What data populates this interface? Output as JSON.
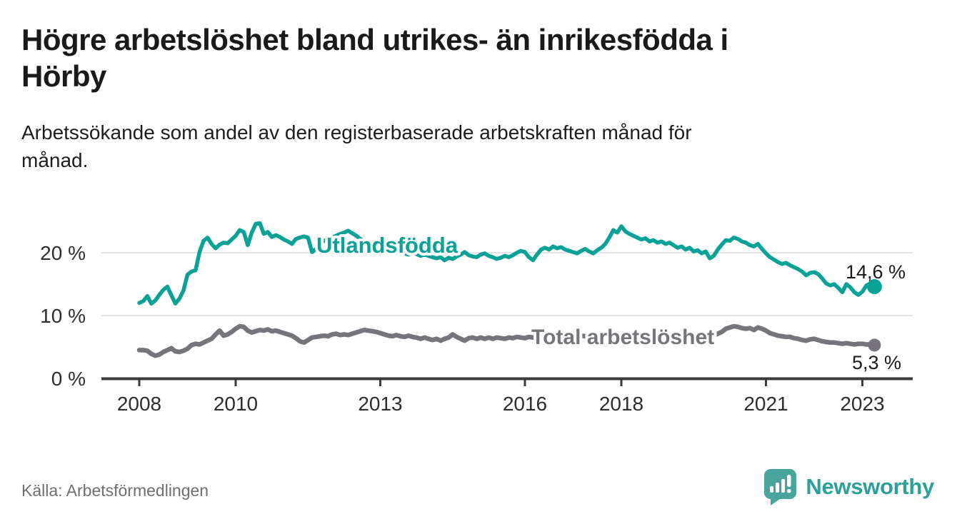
{
  "header": {
    "title_lines": [
      "Högre arbetslöshet bland utrikes- än inrikesfödda i",
      "Hörby"
    ],
    "subtitle_lines": [
      "Arbetssökande som andel av den registerbaserade arbetskraften månad för",
      "månad."
    ]
  },
  "footer": {
    "source": "Källa: Arbetsförmedlingen",
    "brand": "Newsworthy",
    "brand_icon": "newsworthy-speech-bubble-bar-chart-icon",
    "brand_color": "#2ba19a"
  },
  "chart_data": {
    "type": "line",
    "title": "Högre arbetslöshet bland utrikes- än inrikesfödda i Hörby",
    "subtitle": "Arbetssökande som andel av den registerbaserade arbetskraften månad för månad.",
    "source": "Källa: Arbetsförmedlingen",
    "period": {
      "start": "2008-01",
      "end": "2023-04",
      "frequency": "monthly"
    },
    "x_start": 2008,
    "x_ticks": [
      2008,
      2010,
      2013,
      2016,
      2018,
      2021,
      2023
    ],
    "y_ticks": [
      {
        "value": 0,
        "label": "0 %"
      },
      {
        "value": 10,
        "label": "10 %"
      },
      {
        "value": 20,
        "label": "20 %"
      }
    ],
    "ylim": [
      0,
      26
    ],
    "grid": "horizontal",
    "legend": "inline-labels",
    "colors": {
      "accent_teal": "#0aa296",
      "neutral_gray": "#77757b",
      "annotation": "#1a1a1a"
    },
    "series": [
      {
        "name": "Utlandsfödda",
        "color": "#0aa296",
        "end_label": "14,6 %",
        "end_value": 14.6,
        "values": [
          12.0,
          12.3,
          13.1,
          11.9,
          12.4,
          13.3,
          14.1,
          14.6,
          13.2,
          11.9,
          12.7,
          14.0,
          16.5,
          17.0,
          17.2,
          20.1,
          21.9,
          22.4,
          21.4,
          20.7,
          21.3,
          21.6,
          21.5,
          22.1,
          22.7,
          23.6,
          23.3,
          21.2,
          23.2,
          24.6,
          24.7,
          23.0,
          23.3,
          22.5,
          22.8,
          22.5,
          22.1,
          21.8,
          21.4,
          22.2,
          22.4,
          22.6,
          22.4,
          20.1,
          20.6,
          21.4,
          21.9,
          22.2,
          22.4,
          22.7,
          23.0,
          23.2,
          23.5,
          23.1,
          22.7,
          22.2,
          21.8,
          21.4,
          21.0,
          20.8,
          20.6,
          20.4,
          20.7,
          20.3,
          20.0,
          20.2,
          19.9,
          19.7,
          20.0,
          19.8,
          19.5,
          19.7,
          19.5,
          19.3,
          19.1,
          19.3,
          18.8,
          19.2,
          19.0,
          19.4,
          19.7,
          20.1,
          19.6,
          19.4,
          19.3,
          19.7,
          19.9,
          19.5,
          19.3,
          19.0,
          19.2,
          19.5,
          19.3,
          19.6,
          20.0,
          20.3,
          20.1,
          19.3,
          18.8,
          19.7,
          20.5,
          20.8,
          20.5,
          21.0,
          20.7,
          20.9,
          20.5,
          20.3,
          20.1,
          19.9,
          20.3,
          20.6,
          20.2,
          19.9,
          20.4,
          20.8,
          21.4,
          22.4,
          23.6,
          23.2,
          24.2,
          23.4,
          23.0,
          22.7,
          22.4,
          22.1,
          22.3,
          21.8,
          22.0,
          21.6,
          21.8,
          21.4,
          21.6,
          21.2,
          20.8,
          21.0,
          20.5,
          20.8,
          20.2,
          20.4,
          19.9,
          20.2,
          19.1,
          19.5,
          20.5,
          21.3,
          22.0,
          21.9,
          22.4,
          22.2,
          21.8,
          21.6,
          21.2,
          21.0,
          21.4,
          20.6,
          19.9,
          19.3,
          18.9,
          18.5,
          18.2,
          18.4,
          18.0,
          17.7,
          17.4,
          17.0,
          16.4,
          16.8,
          16.9,
          16.6,
          15.9,
          15.1,
          14.8,
          15.0,
          14.4,
          13.7,
          15.0,
          14.5,
          13.7,
          13.3,
          13.8,
          14.8,
          15.1,
          14.6
        ]
      },
      {
        "name": "Total arbetslöshet",
        "color": "#77757b",
        "end_label": "5,3 %",
        "end_value": 5.3,
        "values": [
          4.5,
          4.5,
          4.4,
          3.9,
          3.6,
          3.8,
          4.2,
          4.5,
          4.8,
          4.3,
          4.2,
          4.4,
          4.7,
          5.3,
          5.5,
          5.4,
          5.7,
          6.0,
          6.3,
          7.0,
          7.6,
          6.8,
          7.0,
          7.4,
          7.9,
          8.3,
          8.2,
          7.6,
          7.3,
          7.5,
          7.7,
          7.6,
          7.8,
          7.5,
          7.6,
          7.4,
          7.2,
          7.0,
          6.8,
          6.4,
          5.9,
          5.7,
          6.1,
          6.5,
          6.6,
          6.7,
          6.8,
          6.7,
          7.0,
          7.1,
          6.9,
          7.0,
          6.9,
          7.1,
          7.3,
          7.5,
          7.7,
          7.6,
          7.5,
          7.4,
          7.2,
          7.0,
          6.8,
          6.7,
          6.9,
          6.7,
          6.6,
          6.8,
          6.6,
          6.5,
          6.3,
          6.5,
          6.3,
          6.1,
          6.3,
          6.0,
          6.3,
          6.5,
          7.0,
          6.6,
          6.3,
          6.0,
          6.4,
          6.5,
          6.3,
          6.5,
          6.3,
          6.5,
          6.3,
          6.5,
          6.4,
          6.3,
          6.5,
          6.4,
          6.6,
          6.5,
          6.4,
          6.6,
          6.5,
          6.7,
          6.6,
          6.5,
          6.7,
          6.6,
          6.8,
          6.7,
          6.6,
          6.8,
          6.7,
          6.6,
          6.8,
          6.7,
          6.5,
          6.6,
          6.8,
          6.7,
          6.9,
          6.8,
          6.7,
          6.9,
          6.8,
          6.7,
          6.6,
          6.8,
          6.7,
          6.6,
          6.7,
          6.5,
          6.6,
          6.8,
          6.7,
          6.8,
          6.6,
          6.7,
          6.5,
          6.6,
          6.7,
          6.8,
          6.6,
          6.7,
          6.8,
          6.7,
          6.8,
          6.9,
          7.1,
          7.4,
          7.9,
          8.1,
          8.3,
          8.2,
          8.0,
          7.9,
          8.0,
          7.7,
          8.1,
          7.9,
          7.6,
          7.2,
          7.0,
          6.8,
          6.7,
          6.6,
          6.6,
          6.4,
          6.3,
          6.1,
          6.0,
          6.2,
          6.3,
          6.1,
          5.9,
          5.8,
          5.7,
          5.7,
          5.6,
          5.5,
          5.6,
          5.5,
          5.4,
          5.5,
          5.5,
          5.4,
          5.4,
          5.3
        ]
      }
    ]
  }
}
